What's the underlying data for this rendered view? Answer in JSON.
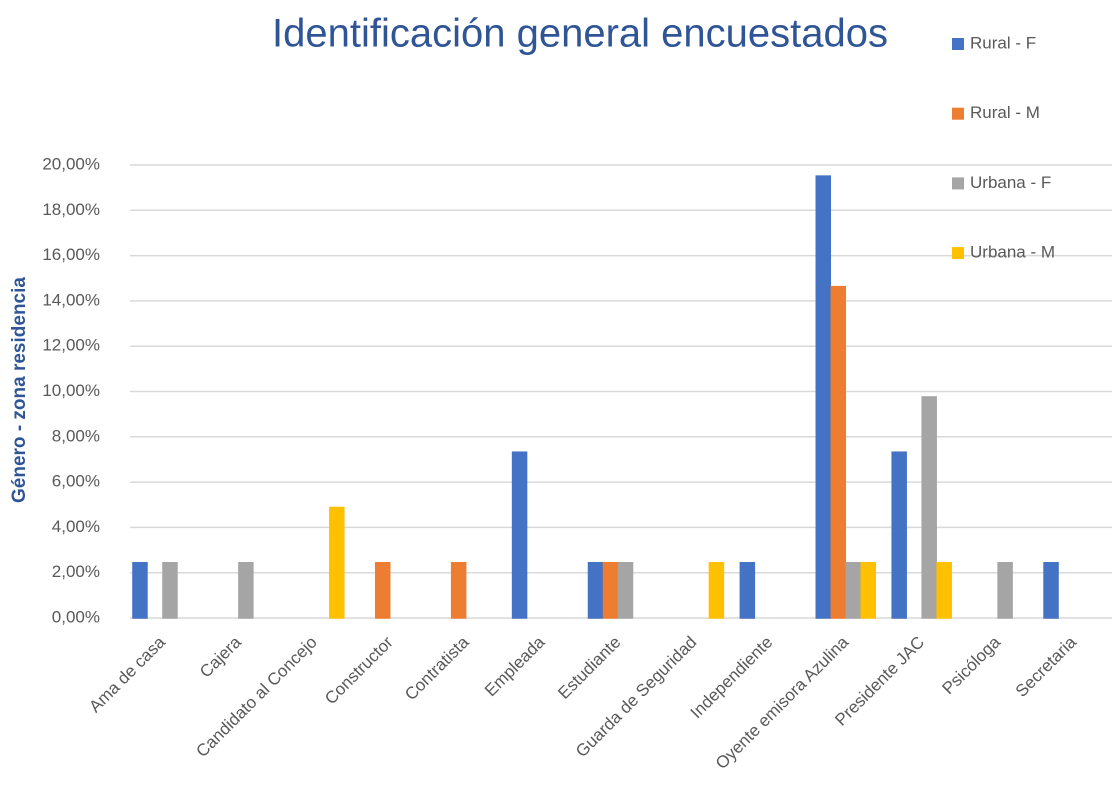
{
  "chart_data": {
    "type": "bar",
    "title": "Identificación general encuestados",
    "y_label": "Género - zona residencia",
    "categories": [
      "Ama de casa",
      "Cajera",
      "Candidato al Concejo",
      "Constructor",
      "Contratista",
      "Empleada",
      "Estudiante",
      "Guarda de Seguridad",
      "Independiente",
      "Oyente emisora Azulina",
      "Presidente JAC",
      "Psicóloga",
      "Secretaria"
    ],
    "series": [
      {
        "name": "Rural - F",
        "color": "#4472c4",
        "values": [
          2.44,
          0,
          0,
          0,
          0,
          7.32,
          2.44,
          0,
          2.44,
          19.51,
          7.32,
          0,
          2.44
        ]
      },
      {
        "name": "Rural - M",
        "color": "#ed7d31",
        "values": [
          0,
          0,
          0,
          2.44,
          2.44,
          0,
          2.44,
          0,
          0,
          14.63,
          0,
          0,
          0
        ]
      },
      {
        "name": "Urbana - F",
        "color": "#a5a5a5",
        "values": [
          2.44,
          2.44,
          0,
          0,
          0,
          0,
          2.44,
          0,
          0,
          2.44,
          9.76,
          2.44,
          0
        ]
      },
      {
        "name": "Urbana - M",
        "color": "#ffc000",
        "values": [
          0,
          0,
          4.88,
          0,
          0,
          0,
          0,
          2.44,
          0,
          2.44,
          2.44,
          0,
          0
        ]
      }
    ],
    "ylim": [
      0,
      20
    ],
    "yticks": [
      {
        "value": 0,
        "label": "0,00%"
      },
      {
        "value": 2,
        "label": "2,00%"
      },
      {
        "value": 4,
        "label": "4,00%"
      },
      {
        "value": 6,
        "label": "6,00%"
      },
      {
        "value": 8,
        "label": "8,00%"
      },
      {
        "value": 10,
        "label": "10,00%"
      },
      {
        "value": 12,
        "label": "12,00%"
      },
      {
        "value": 14,
        "label": "14,00%"
      },
      {
        "value": 16,
        "label": "16,00%"
      },
      {
        "value": 18,
        "label": "18,00%"
      },
      {
        "value": 20,
        "label": "20,00%"
      }
    ],
    "grid": true,
    "legend": "right"
  }
}
